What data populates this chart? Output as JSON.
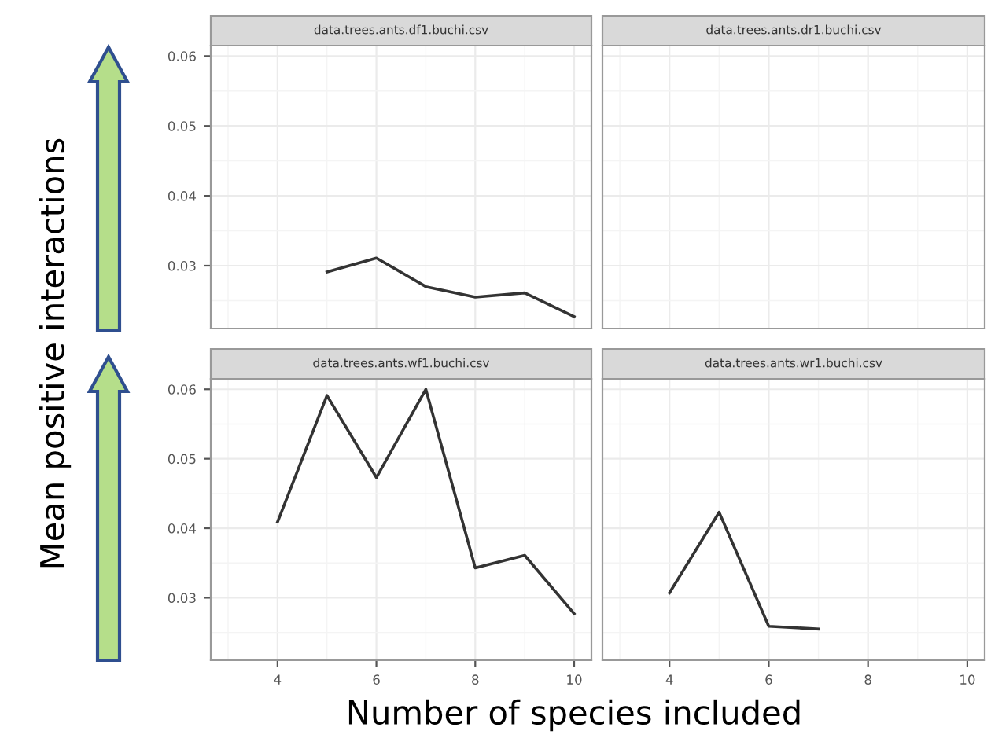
{
  "chart_data": [
    {
      "type": "line",
      "title": "data.trees.ants.df1.buchi.csv",
      "ylabel": "Mean positive interactions",
      "x": [
        5,
        6,
        7,
        8,
        9,
        10
      ],
      "values": [
        0.0291,
        0.0311,
        0.027,
        0.0255,
        0.0261,
        0.0227
      ],
      "color": "#333333",
      "xlim": [
        2.65,
        10.35
      ],
      "ylim": [
        0.021,
        0.0615
      ],
      "xticks": [
        4,
        6,
        8,
        10
      ],
      "yticks": [
        0.03,
        0.04,
        0.05,
        0.06
      ],
      "tick_labels": "y",
      "grid": true
    },
    {
      "type": "line",
      "title": "data.trees.ants.dr1.buchi.csv",
      "color": "#333333",
      "xlim": [
        2.65,
        10.35
      ],
      "ylim": [
        0.021,
        0.0615
      ],
      "xticks": [
        4,
        6,
        8,
        10
      ],
      "yticks": [
        0.03,
        0.04,
        0.05,
        0.06
      ],
      "tick_labels": false,
      "grid": true
    },
    {
      "type": "line",
      "title": "data.trees.ants.wf1.buchi.csv",
      "xlabel": "Number of species included",
      "x": [
        4,
        5,
        6,
        7,
        8,
        9,
        10
      ],
      "values": [
        0.0409,
        0.0591,
        0.0473,
        0.06,
        0.0343,
        0.0361,
        0.0277
      ],
      "color": "#333333",
      "xlim": [
        2.65,
        10.35
      ],
      "ylim": [
        0.021,
        0.0615
      ],
      "xticks": [
        4,
        6,
        8,
        10
      ],
      "yticks": [
        0.03,
        0.04,
        0.05,
        0.06
      ],
      "grid": true
    },
    {
      "type": "line",
      "title": "data.trees.ants.wr1.buchi.csv",
      "x": [
        4,
        5,
        6,
        7
      ],
      "values": [
        0.0307,
        0.0423,
        0.0259,
        0.0255
      ],
      "color": "#333333",
      "xlim": [
        2.65,
        10.35
      ],
      "ylim": [
        0.021,
        0.0615
      ],
      "xticks": [
        4,
        6,
        8,
        10
      ],
      "yticks": [
        0.03,
        0.04,
        0.05,
        0.06
      ],
      "tick_labels": "x",
      "grid": true
    }
  ]
}
